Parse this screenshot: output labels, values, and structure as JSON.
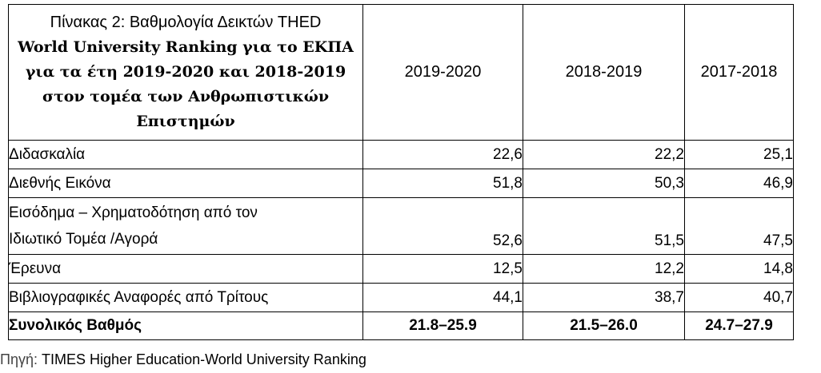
{
  "table": {
    "title_lines": [
      "Πίνακας 2:  Βαθμολογία Δεικτών  THED",
      "World University Ranking για το ΕΚΠΑ",
      "για τα  έτη  2019-2020  και 2018-2019",
      "στον τομέα των Ανθρωπιστικών",
      "Επιστημών"
    ],
    "columns": [
      "2019-2020",
      "2018-2019",
      "2017-2018"
    ],
    "rows": [
      {
        "label": "Διδασκαλία",
        "values": [
          "22,6",
          "22,2",
          "25,1"
        ]
      },
      {
        "label": "Διεθνής Εικόνα",
        "values": [
          "51,8",
          "50,3",
          "46,9"
        ]
      },
      {
        "label_lines": [
          "Εισόδημα – Χρηματοδότηση από τον",
          "Ιδιωτικό Τομέα /Αγορά"
        ],
        "values": [
          "52,6",
          "51,5",
          "47,5"
        ]
      },
      {
        "label": "Έρευνα",
        "values": [
          "12,5",
          "12,2",
          "14,8"
        ]
      },
      {
        "label": "Βιβλιογραφικές Αναφορές από Τρίτους",
        "values": [
          "44,1",
          "38,7",
          "40,7"
        ]
      }
    ],
    "total": {
      "label": "Συνολικός Βαθμός",
      "values": [
        "21.8–25.9",
        "21.5–26.0",
        "24.7–27.9"
      ]
    }
  },
  "source": {
    "prefix": "Πηγή: ",
    "text": "TIMES Higher Education-World University Ranking"
  }
}
